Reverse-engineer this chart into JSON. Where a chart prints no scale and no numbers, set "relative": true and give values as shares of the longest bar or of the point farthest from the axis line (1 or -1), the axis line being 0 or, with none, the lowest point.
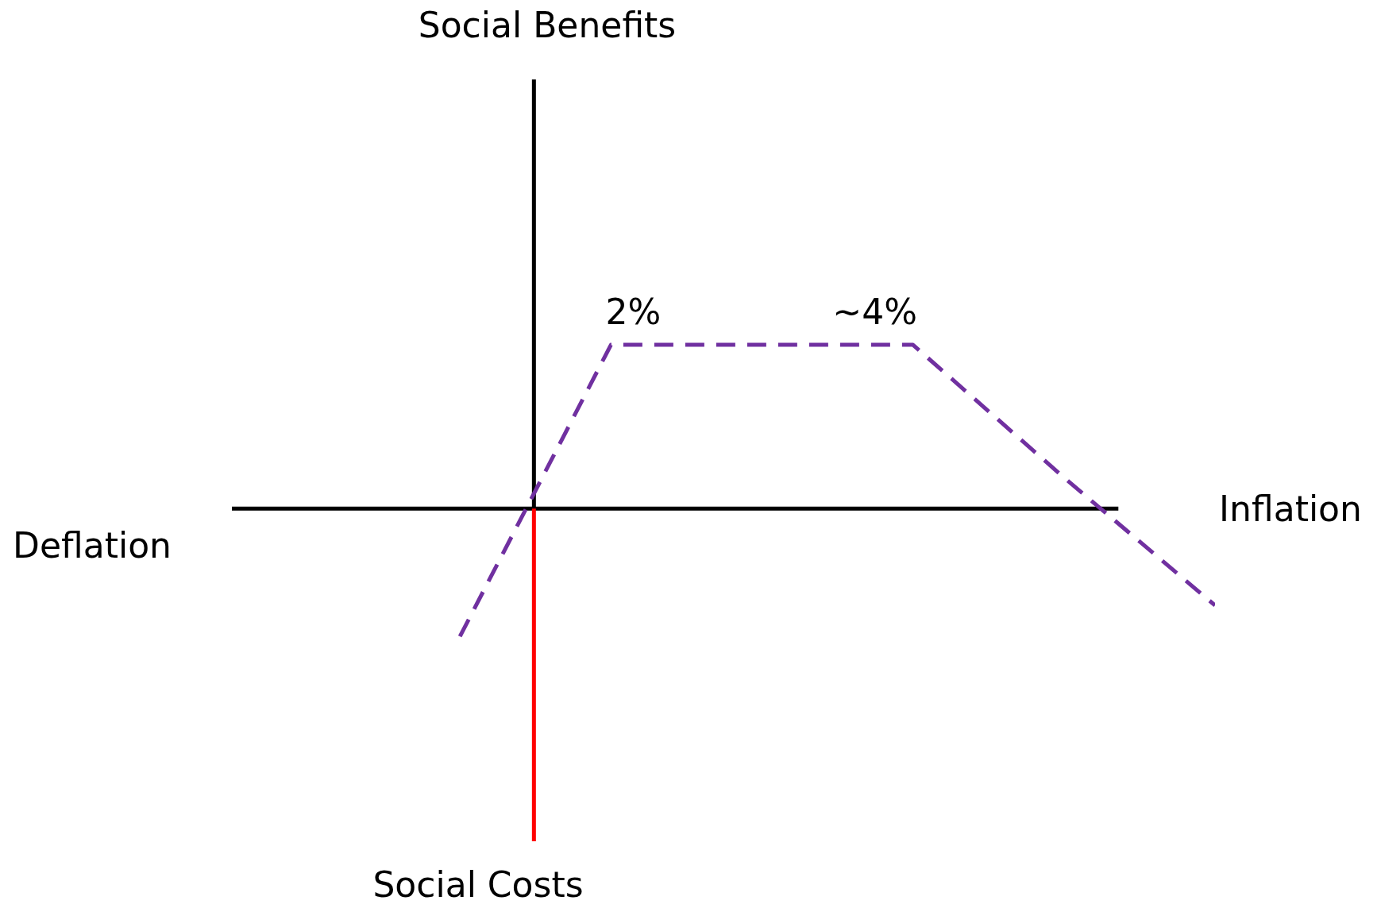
{
  "chart_data": {
    "type": "line",
    "relative": true,
    "xlabel": "Inflation",
    "categories": [
      null,
      null,
      null,
      null,
      null,
      null
    ],
    "series": [
      {
        "color": "#7030a0",
        "values": [
          -0.78,
          1,
          1,
          1,
          0.19,
          -0.59
        ],
        "line_style": "dashed"
      }
    ],
    "annotations": [
      "Social Benefits",
      "Deflation",
      "Social Costs",
      "2%",
      "~4%"
    ]
  }
}
